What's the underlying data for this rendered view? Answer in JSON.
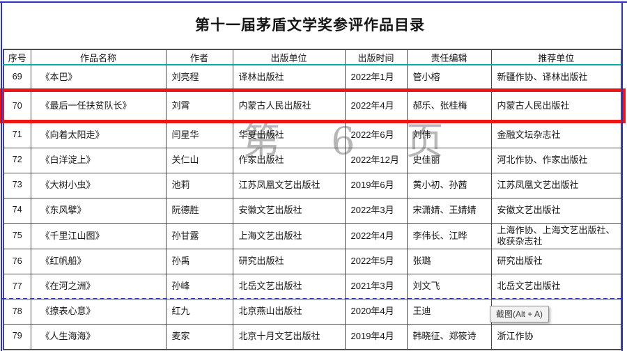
{
  "page": {
    "title": "第十一届茅盾文学奖参评作品目录",
    "watermark": "第 6 页"
  },
  "tooltip": {
    "label": "截图(Alt + A)"
  },
  "table": {
    "columns": [
      "序号",
      "作品名称",
      "作者",
      "出版单位",
      "出版时间",
      "责任编辑",
      "推荐单位"
    ],
    "rows": [
      {
        "no": "69",
        "title": "《本巴》",
        "author": "刘亮程",
        "publisher": "译林出版社",
        "date": "2022年1月",
        "editor": "管小榕",
        "recommender": "新疆作协、译林出版社",
        "highlighted": false
      },
      {
        "no": "70",
        "title": "《最后一任扶贫队长》",
        "author": "刘霄",
        "publisher": "内蒙古人民出版社",
        "date": "2022年4月",
        "editor": "郝乐、张桂梅",
        "recommender": "内蒙古人民出版社",
        "highlighted": true
      },
      {
        "no": "71",
        "title": "《向着太阳走》",
        "author": "闫星华",
        "publisher": "华夏出版社",
        "date": "2022年6月",
        "editor": "刘伟",
        "recommender": "金融文坛杂志社",
        "highlighted": false
      },
      {
        "no": "72",
        "title": "《白洋淀上》",
        "author": "关仁山",
        "publisher": "作家出版社",
        "date": "2022年12月",
        "editor": "史佳丽",
        "recommender": "河北作协、作家出版社",
        "highlighted": false
      },
      {
        "no": "73",
        "title": "《大树小虫》",
        "author": "池莉",
        "publisher": "江苏凤凰文艺出版社",
        "date": "2019年6月",
        "editor": "黄小初、孙茜",
        "recommender": "江苏凤凰文艺出版社",
        "highlighted": false
      },
      {
        "no": "74",
        "title": "《东风擘》",
        "author": "阮德胜",
        "publisher": "安徽文艺出版社",
        "date": "2022年3月",
        "editor": "宋潇婧、王婧婧",
        "recommender": "安徽文艺出版社",
        "highlighted": false
      },
      {
        "no": "75",
        "title": "《千里江山图》",
        "author": "孙甘露",
        "publisher": "上海文艺出版社",
        "date": "2022年4月",
        "editor": "李伟长、江晔",
        "recommender": "上海作协、上海文艺出版社、收获杂志社",
        "highlighted": false
      },
      {
        "no": "76",
        "title": "《红帆船》",
        "author": "孙禹",
        "publisher": "研究出版社",
        "date": "2022年5月",
        "editor": "张璐",
        "recommender": "研究出版社",
        "highlighted": false
      },
      {
        "no": "77",
        "title": "《在河之洲》",
        "author": "孙峰",
        "publisher": "北岳文艺出版社",
        "date": "2021年3月",
        "editor": "刘文飞",
        "recommender": "北岳文艺出版社",
        "highlighted": false
      },
      {
        "no": "78",
        "title": "《撩表心意》",
        "author": "红九",
        "publisher": "北京燕山出版社",
        "date": "2020年4月",
        "editor": "王迪",
        "recommender": "",
        "highlighted": false
      },
      {
        "no": "79",
        "title": "《人生海海》",
        "author": "麦家",
        "publisher": "北京十月文艺出版社",
        "date": "2019年4月",
        "editor": "韩晓征、郑筱诗",
        "recommender": "浙江作协",
        "highlighted": false
      }
    ]
  }
}
